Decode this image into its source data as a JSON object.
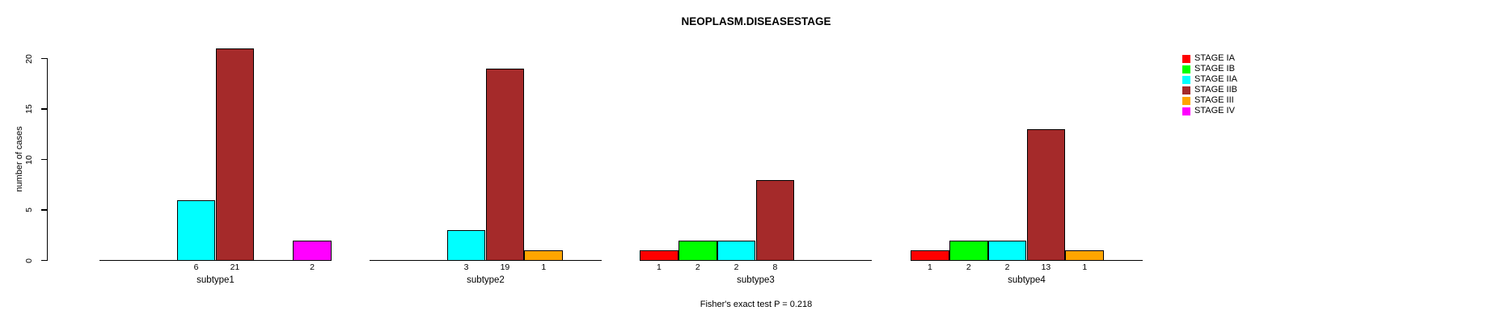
{
  "chart_data": {
    "type": "bar",
    "title": "NEOPLASM.DISEASESTAGE",
    "ylabel": "number of cases",
    "footnote": "Fisher's exact test P = 0.218",
    "ylim": [
      0,
      21
    ],
    "yticks": [
      0,
      5,
      10,
      15,
      20
    ],
    "grid": false,
    "legend_position": "top-right",
    "series": [
      {
        "name": "STAGE IA",
        "color": "#FF0000"
      },
      {
        "name": "STAGE IB",
        "color": "#00FF00"
      },
      {
        "name": "STAGE IIA",
        "color": "#00FFFF"
      },
      {
        "name": "STAGE IIB",
        "color": "#A52A2A"
      },
      {
        "name": "STAGE III",
        "color": "#FFA500"
      },
      {
        "name": "STAGE IV",
        "color": "#FF00FF"
      }
    ],
    "categories": [
      "subtype1",
      "subtype2",
      "subtype3",
      "subtype4"
    ],
    "groups": [
      {
        "label": "subtype1",
        "values": [
          0,
          0,
          6,
          21,
          0,
          2
        ]
      },
      {
        "label": "subtype2",
        "values": [
          0,
          0,
          3,
          19,
          1,
          0
        ]
      },
      {
        "label": "subtype3",
        "values": [
          1,
          2,
          2,
          8,
          0,
          0
        ]
      },
      {
        "label": "subtype4",
        "values": [
          1,
          2,
          2,
          13,
          1,
          0
        ]
      }
    ]
  }
}
